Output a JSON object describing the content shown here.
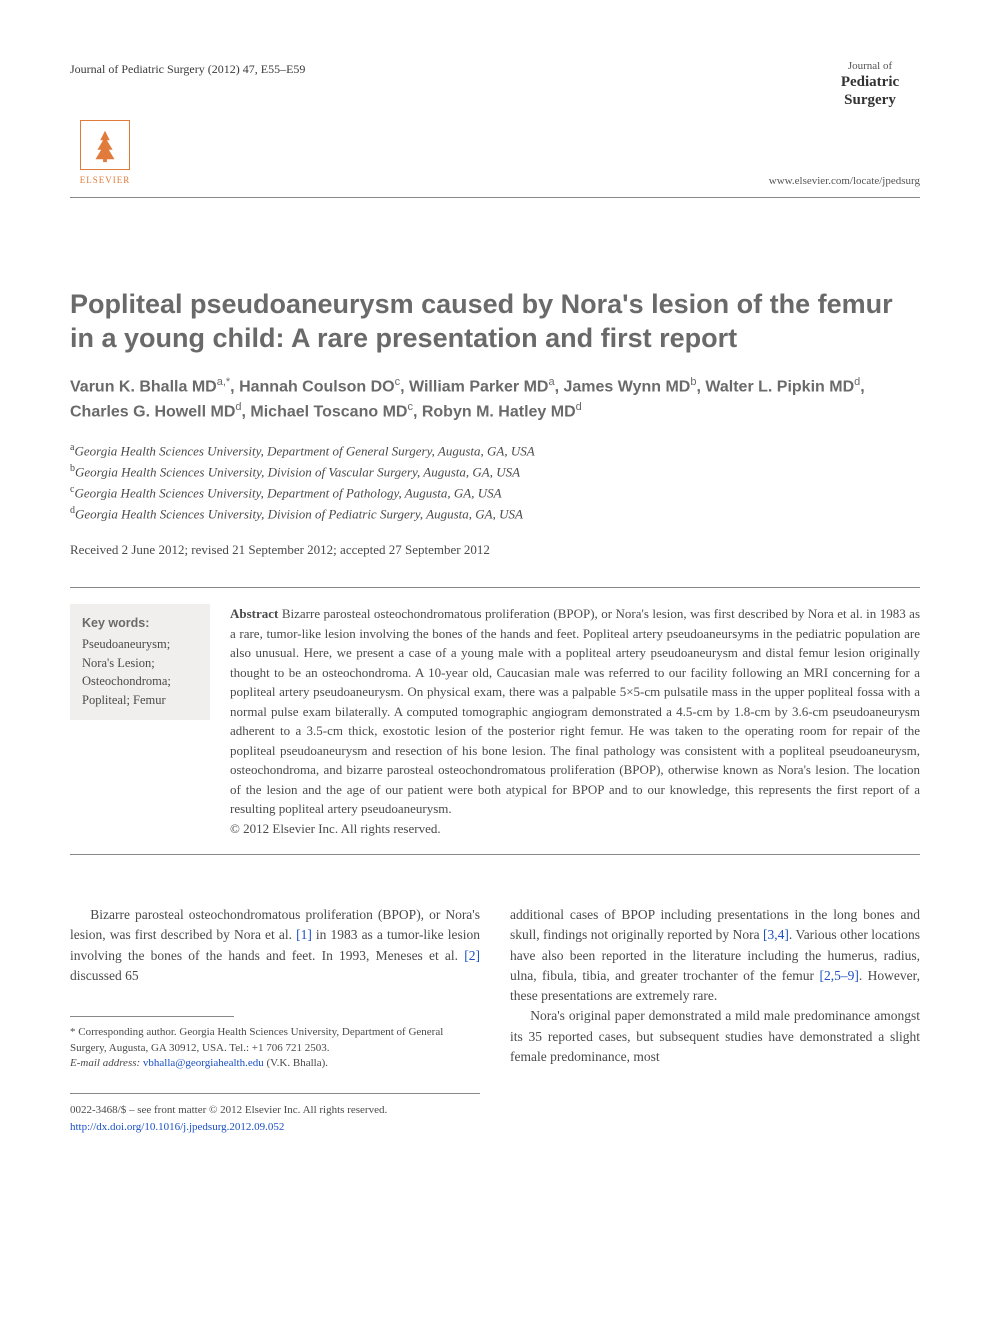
{
  "header": {
    "citation": "Journal of Pediatric Surgery (2012) 47, E55–E59",
    "journal_small": "Journal of",
    "journal_main": "Pediatric",
    "journal_sub": "Surgery",
    "journal_url": "www.elsevier.com/locate/jpedsurg",
    "publisher": "ELSEVIER"
  },
  "title": "Popliteal pseudoaneurysm caused by Nora's lesion of the femur in a young child: A rare presentation and first report",
  "authors_html": "Varun K. Bhalla MD<sup>a,*</sup>, Hannah Coulson DO<sup>c</sup>, William Parker MD<sup>a</sup>, James Wynn MD<sup>b</sup>, Walter L. Pipkin MD<sup>d</sup>, Charles G. Howell MD<sup>d</sup>, Michael Toscano MD<sup>c</sup>, Robyn M. Hatley MD<sup>d</sup>",
  "affiliations": [
    {
      "sup": "a",
      "text": "Georgia Health Sciences University, Department of General Surgery, Augusta, GA, USA"
    },
    {
      "sup": "b",
      "text": "Georgia Health Sciences University, Division of Vascular Surgery, Augusta, GA, USA"
    },
    {
      "sup": "c",
      "text": "Georgia Health Sciences University, Department of Pathology, Augusta, GA, USA"
    },
    {
      "sup": "d",
      "text": "Georgia Health Sciences University, Division of Pediatric Surgery, Augusta, GA, USA"
    }
  ],
  "dateline": "Received 2 June 2012; revised 21 September 2012; accepted 27 September 2012",
  "keywords": {
    "head": "Key words:",
    "items": "Pseudoaneurysm; Nora's Lesion; Osteochondroma; Popliteal; Femur"
  },
  "abstract": {
    "head": "Abstract",
    "body": "Bizarre parosteal osteochondromatous proliferation (BPOP), or Nora's lesion, was first described by Nora et al. in 1983 as a rare, tumor-like lesion involving the bones of the hands and feet. Popliteal artery pseudoaneursyms in the pediatric population are also unusual. Here, we present a case of a young male with a popliteal artery pseudoaneurysm and distal femur lesion originally thought to be an osteochondroma. A 10-year old, Caucasian male was referred to our facility following an MRI concerning for a popliteal artery pseudoaneurysm. On physical exam, there was a palpable 5×5-cm pulsatile mass in the upper popliteal fossa with a normal pulse exam bilaterally. A computed tomographic angiogram demonstrated a 4.5-cm by 1.8-cm by 3.6-cm pseudoaneurysm adherent to a 3.5-cm thick, exostotic lesion of the posterior right femur. He was taken to the operating room for repair of the popliteal pseudoaneurysm and resection of his bone lesion. The final pathology was consistent with a popliteal pseudoaneurysm, osteochondroma, and bizarre parosteal osteochondromatous proliferation (BPOP), otherwise known as Nora's lesion. The location of the lesion and the age of our patient were both atypical for BPOP and to our knowledge, this represents the first report of a resulting popliteal artery pseudoaneurysm.",
    "copyright": "© 2012 Elsevier Inc. All rights reserved."
  },
  "body": {
    "col1_p1_a": "Bizarre parosteal osteochondromatous proliferation (BPOP), or Nora's lesion, was first described by Nora et al. ",
    "col1_ref1": "[1]",
    "col1_p1_b": " in 1983 as a tumor-like lesion involving the bones of the hands and feet. In 1993, Meneses et al. ",
    "col1_ref2": "[2]",
    "col1_p1_c": " discussed 65",
    "col2_p1_a": "additional cases of BPOP including presentations in the long bones and skull, findings not originally reported by Nora ",
    "col2_ref34": "[3,4]",
    "col2_p1_b": ". Various other locations have also been reported in the literature including the humerus, radius, ulna, fibula, tibia, and greater trochanter of the femur ",
    "col2_ref259": "[2,5–9]",
    "col2_p1_c": ". However, these presentations are extremely rare.",
    "col2_p2": "Nora's original paper demonstrated a mild male predominance amongst its 35 reported cases, but subsequent studies have demonstrated a slight female predominance, most"
  },
  "footnote": {
    "corr": "* Corresponding author. Georgia Health Sciences University, Department of General Surgery, Augusta, GA 30912, USA. Tel.: +1 706 721 2503.",
    "email_label": "E-mail address:",
    "email": "vbhalla@georgiahealth.edu",
    "email_paren": "(V.K. Bhalla)."
  },
  "bottom": {
    "copyright": "0022-3468/$ – see front matter © 2012 Elsevier Inc. All rights reserved.",
    "doi": "http://dx.doi.org/10.1016/j.jpedsurg.2012.09.052"
  },
  "colors": {
    "link": "#1a4fc4",
    "heading_gray": "#6a6a6a",
    "accent_orange": "#e07b3c"
  }
}
